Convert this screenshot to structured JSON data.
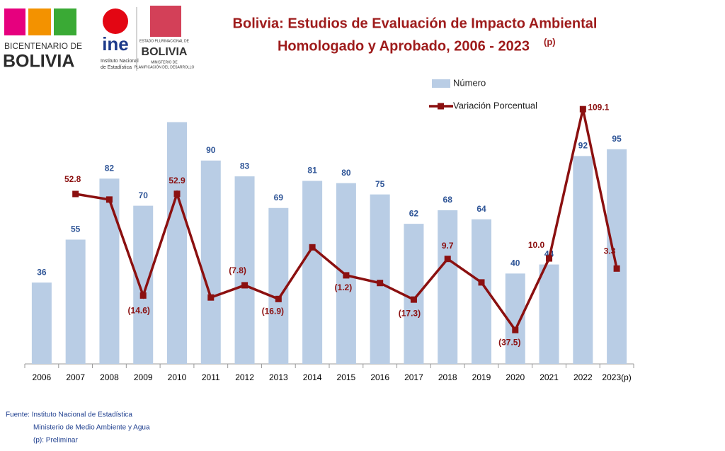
{
  "logos": {
    "bicentenario_line1": "BICENTENARIO DE",
    "bicentenario_line2": "BOLIVIA",
    "ine": "ine",
    "ine_line1": "Instituto Nacional",
    "ine_line2": "de Estadística",
    "estado_line1": "ESTADO PLURINACIONAL DE",
    "estado_line2": "BOLIVIA",
    "estado_line3": "MINISTERIO DE",
    "estado_line4": "PLANIFICACIÓN DEL DESARROLLO"
  },
  "chart_data": {
    "type": "bar_line",
    "title": [
      "Bolivia: Estudios de Evaluación de Impacto Ambiental",
      "Homologado y Aprobado, 2006 - 2023"
    ],
    "title_superscript": "(p)",
    "categories": [
      "2006",
      "2007",
      "2008",
      "2009",
      "2010",
      "2011",
      "2012",
      "2013",
      "2014",
      "2015",
      "2016",
      "2017",
      "2018",
      "2019",
      "2020",
      "2021",
      "2022",
      "2023(p)"
    ],
    "series": [
      {
        "name": "Número",
        "color": "#b9cde5",
        "label_color": "#2f5597",
        "kind": "bar",
        "values": [
          36,
          55,
          82,
          70,
          107,
          90,
          83,
          69,
          81,
          80,
          75,
          62,
          68,
          64,
          40,
          44,
          92,
          95
        ],
        "value_labels": [
          "36",
          "55",
          "82",
          "70",
          null,
          "90",
          "83",
          "69",
          "81",
          "80",
          "75",
          "62",
          "68",
          "64",
          "40",
          "44",
          "92",
          "95"
        ]
      },
      {
        "name": "Variación Porcentual",
        "color": "#8b1010",
        "label_color": "#8b1010",
        "kind": "line",
        "axis": "y2",
        "values": [
          null,
          52.8,
          49.1,
          -14.6,
          52.9,
          -15.9,
          -7.8,
          -16.9,
          17.4,
          -1.2,
          -6.3,
          -17.3,
          9.7,
          -5.9,
          -37.5,
          10.0,
          109.1,
          3.3
        ],
        "value_labels": [
          null,
          "52.8",
          null,
          "(14.6)",
          "52.9",
          null,
          "(7.8)",
          "(16.9)",
          null,
          "(1.2)",
          null,
          "(17.3)",
          "9.7",
          null,
          "(37.5)",
          "10.0",
          "109.1",
          "3.3"
        ]
      }
    ],
    "ylim": [
      0,
      120
    ],
    "y2lim": [
      -60,
      120
    ],
    "legend": "top",
    "footer": [
      "Fuente: Instituto Nacional de Estadística",
      "Ministerio de Medio Ambiente y Agua",
      "(p): Preliminar"
    ]
  }
}
